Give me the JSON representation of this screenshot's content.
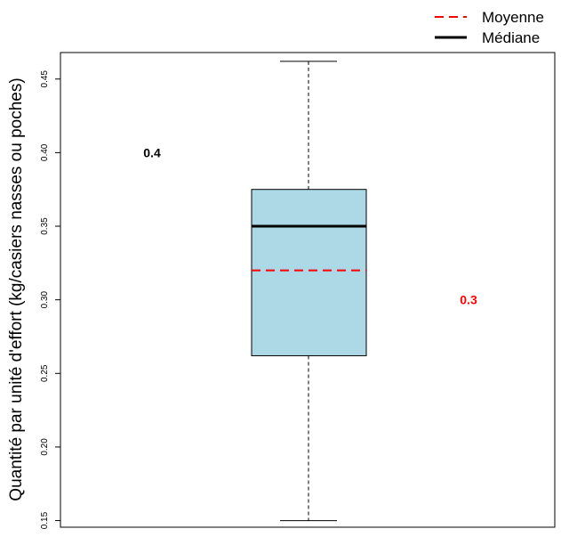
{
  "chart_data": {
    "type": "boxplot",
    "ylabel": "Quantité par unité d'effort (kg/casiers nasses ou poches)",
    "ylim": [
      0.1455,
      0.468
    ],
    "y_ticks": [
      0.15,
      0.2,
      0.25,
      0.3,
      0.35,
      0.4,
      0.45
    ],
    "y_tick_labels": [
      "0.15",
      "0.20",
      "0.25",
      "0.30",
      "0.35",
      "0.40",
      "0.45"
    ],
    "box": {
      "min": 0.15,
      "q1": 0.262,
      "median": 0.35,
      "q3": 0.375,
      "max": 0.462,
      "mean": 0.32
    },
    "annotations": [
      {
        "text": "0.4",
        "value": 0.4,
        "color": "#000000"
      },
      {
        "text": "0.3",
        "value": 0.3,
        "color": "#ff0000"
      }
    ],
    "legend": {
      "position": "top-right",
      "items": [
        {
          "label": "Moyenne",
          "style": "dashed",
          "color": "#ff0000"
        },
        {
          "label": "Médiane",
          "style": "solid",
          "color": "#000000"
        }
      ]
    },
    "colors": {
      "box_fill": "#add8e6",
      "mean": "#ff0000",
      "median": "#000000"
    }
  }
}
